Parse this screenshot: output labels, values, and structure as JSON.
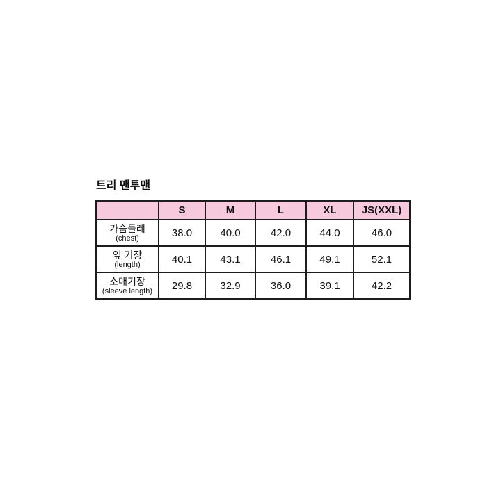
{
  "title": "트리 맨투맨",
  "colors": {
    "header_bg": "#f6c9dd",
    "border": "#1c1c1c",
    "text": "#111111",
    "page_bg": "#ffffff"
  },
  "table": {
    "header": [
      "",
      "S",
      "M",
      "L",
      "XL",
      "JS(XXL)"
    ],
    "rows": [
      {
        "label": "가슴둘레",
        "sublabel": "(chest)",
        "values": [
          "38.0",
          "40.0",
          "42.0",
          "44.0",
          "46.0"
        ]
      },
      {
        "label": "옆 기장",
        "sublabel": "(length)",
        "values": [
          "40.1",
          "43.1",
          "46.1",
          "49.1",
          "52.1"
        ]
      },
      {
        "label": "소매기장",
        "sublabel": "(sleeve length)",
        "values": [
          "29.8",
          "32.9",
          "36.0",
          "39.1",
          "42.2"
        ]
      }
    ]
  },
  "chart_data": {
    "type": "table",
    "title": "트리 맨투맨",
    "columns": [
      "S",
      "M",
      "L",
      "XL",
      "JS(XXL)"
    ],
    "row_labels": [
      "가슴둘레 (chest)",
      "옆 기장 (length)",
      "소매기장 (sleeve length)"
    ],
    "series": [
      {
        "name": "가슴둘레 (chest)",
        "values": [
          38.0,
          40.0,
          42.0,
          44.0,
          46.0
        ]
      },
      {
        "name": "옆 기장 (length)",
        "values": [
          40.1,
          43.1,
          46.1,
          49.1,
          52.1
        ]
      },
      {
        "name": "소매기장 (sleeve length)",
        "values": [
          29.8,
          32.9,
          36.0,
          39.1,
          42.2
        ]
      }
    ],
    "layout_hints": {
      "header_fill": "#f6c9dd",
      "grid": true
    }
  }
}
